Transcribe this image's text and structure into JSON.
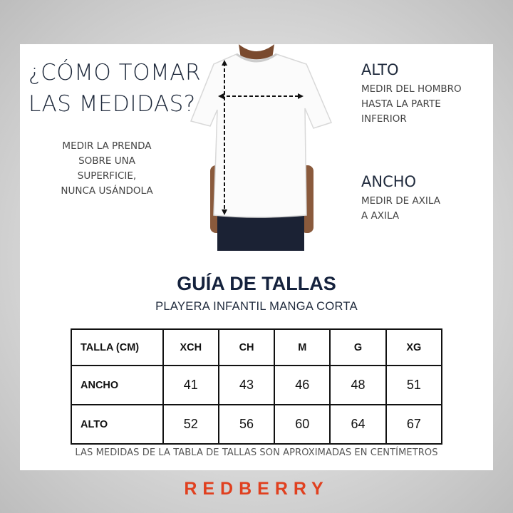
{
  "how_to": {
    "title_lines": [
      "¿CÓMO TOMAR",
      "LAS MEDIDAS?"
    ],
    "note_lines": [
      "MEDIR LA PRENDA",
      "SOBRE UNA",
      "SUPERFICIE,",
      "NUNCA USÁNDOLA"
    ]
  },
  "alto": {
    "title": "ALTO",
    "lines": [
      "MEDIR DEL HOMBRO",
      "HASTA LA PARTE",
      "INFERIOR"
    ]
  },
  "ancho": {
    "title": "ANCHO",
    "lines": [
      "MEDIR DE AXILA",
      "A AXILA"
    ]
  },
  "guide": {
    "title": "GUÍA DE TALLAS",
    "subtitle": "PLAYERA INFANTIL MANGA CORTA"
  },
  "table": {
    "headers": [
      "TALLA (CM)",
      "XCH",
      "CH",
      "M",
      "G",
      "XG"
    ],
    "rows": [
      {
        "label": "ANCHO",
        "values": [
          "41",
          "43",
          "46",
          "48",
          "51"
        ]
      },
      {
        "label": "ALTO",
        "values": [
          "52",
          "56",
          "60",
          "64",
          "67"
        ]
      }
    ]
  },
  "footnote": "LAS MEDIDAS DE LA TABLA DE TALLAS SON APROXIMADAS EN CENTÍMETROS",
  "brand": {
    "name": "REDBERRY",
    "color": "#e0401f"
  },
  "colors": {
    "title": "#15223d",
    "text": "#444444"
  }
}
